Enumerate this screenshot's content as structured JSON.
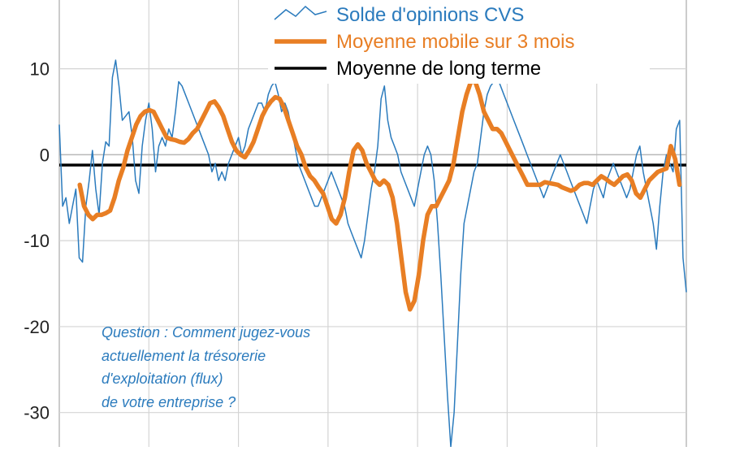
{
  "chart_data": {
    "type": "line",
    "ylim": [
      -34,
      18
    ],
    "y_ticks": [
      10,
      0,
      -10,
      -20,
      -30
    ],
    "grid": true,
    "legend_position": "top",
    "reference_line": {
      "name": "Moyenne de long terme",
      "y": -1.2,
      "color": "#000000"
    },
    "series": [
      {
        "name": "Solde d'opinions CVS",
        "color": "#2b7bbd",
        "x_start": 0,
        "x_end": 184,
        "values": [
          3.5,
          -6,
          -5,
          -8,
          -6,
          -4,
          -12,
          -12.5,
          -6,
          -3,
          0.5,
          -4,
          -7,
          -1,
          1.5,
          1,
          9,
          11,
          8,
          4,
          4.5,
          5,
          2,
          -3,
          -4.5,
          1,
          4,
          6,
          3,
          -2,
          1,
          2,
          1,
          3,
          2,
          5,
          8.5,
          8,
          7,
          6,
          5,
          4,
          3,
          2,
          1,
          0,
          -2,
          -1,
          -3,
          -2,
          -3,
          -1,
          0,
          1,
          2,
          0,
          1,
          3,
          4,
          5,
          6,
          6,
          5,
          7,
          8,
          8.5,
          7,
          5,
          6,
          5,
          3,
          1,
          -1,
          -2,
          -3,
          -4,
          -5,
          -6,
          -6,
          -5,
          -4,
          -3,
          -2,
          -3,
          -4,
          -5,
          -6,
          -8,
          -9,
          -10,
          -11,
          -12,
          -10,
          -7,
          -4,
          -2,
          1,
          6.5,
          8,
          4,
          2,
          1,
          0,
          -2,
          -3,
          -4,
          -5,
          -6,
          -4,
          -2,
          0,
          1,
          0,
          -3,
          -8,
          -14,
          -21,
          -28,
          -34,
          -30,
          -22,
          -14,
          -8,
          -6,
          -4,
          -2,
          -1,
          2,
          5,
          7,
          8,
          8.5,
          9,
          8,
          7,
          6,
          5,
          4,
          3,
          2,
          1,
          0,
          -1,
          -2,
          -3,
          -4,
          -5,
          -4,
          -3,
          -2,
          -1,
          0,
          -1,
          -2,
          -3,
          -4,
          -5,
          -6,
          -7,
          -8,
          -6,
          -4,
          -3,
          -4,
          -5,
          -3,
          -2,
          -1,
          -2,
          -3,
          -4,
          -5,
          -4,
          -2,
          0,
          1,
          -2,
          -4,
          -6,
          -8,
          -11,
          -6,
          -2,
          0,
          -1,
          -2,
          3,
          4,
          -12,
          -16
        ]
      },
      {
        "name": "Moyenne mobile sur 3 mois",
        "color": "#e87e24",
        "x_start": 6,
        "x_end": 182,
        "values": [
          -3.5,
          -6,
          -7,
          -7.5,
          -7,
          -7,
          -6.8,
          -6.5,
          -5,
          -3,
          -1.5,
          0.5,
          2,
          3.5,
          4.5,
          5,
          5.2,
          5,
          4,
          3,
          2,
          1.8,
          1.7,
          1.5,
          1.4,
          1.8,
          2.5,
          3,
          4,
          5,
          6,
          6.2,
          5.5,
          4.5,
          3,
          1.5,
          0.5,
          0,
          -0.3,
          0.5,
          1.5,
          3,
          4.5,
          5.5,
          6.2,
          6.7,
          6.5,
          5.5,
          4,
          2.5,
          1,
          0,
          -1.5,
          -2.5,
          -3,
          -3.8,
          -4.5,
          -6,
          -7.5,
          -8,
          -7,
          -5,
          -2,
          0.5,
          1.2,
          0.5,
          -1,
          -2,
          -3,
          -3.5,
          -3,
          -3.5,
          -5,
          -8,
          -12,
          -16,
          -18,
          -17,
          -14,
          -10,
          -7,
          -6,
          -6,
          -5,
          -4,
          -3,
          -1,
          2,
          5,
          7,
          8.5,
          8.5,
          7,
          5,
          4,
          3,
          3,
          2.5,
          1.5,
          0.5,
          -0.5,
          -1.5,
          -2.5,
          -3.5,
          -3.5,
          -3.5,
          -3.5,
          -3.2,
          -3.3,
          -3.4,
          -3.5,
          -3.8,
          -4,
          -4.2,
          -4,
          -3.5,
          -3.3,
          -3.3,
          -3.5,
          -3,
          -2.5,
          -2.8,
          -3.2,
          -3.5,
          -3,
          -2.5,
          -2.3,
          -3,
          -4.5,
          -5,
          -4,
          -3,
          -2.5,
          -2,
          -1.8,
          -1.6,
          1,
          -0.5,
          -3.5
        ]
      }
    ],
    "annotation": [
      "Question : Comment jugez-vous",
      "actuellement la trésorerie",
      "d'exploitation (flux)",
      "de votre entreprise ?"
    ]
  }
}
